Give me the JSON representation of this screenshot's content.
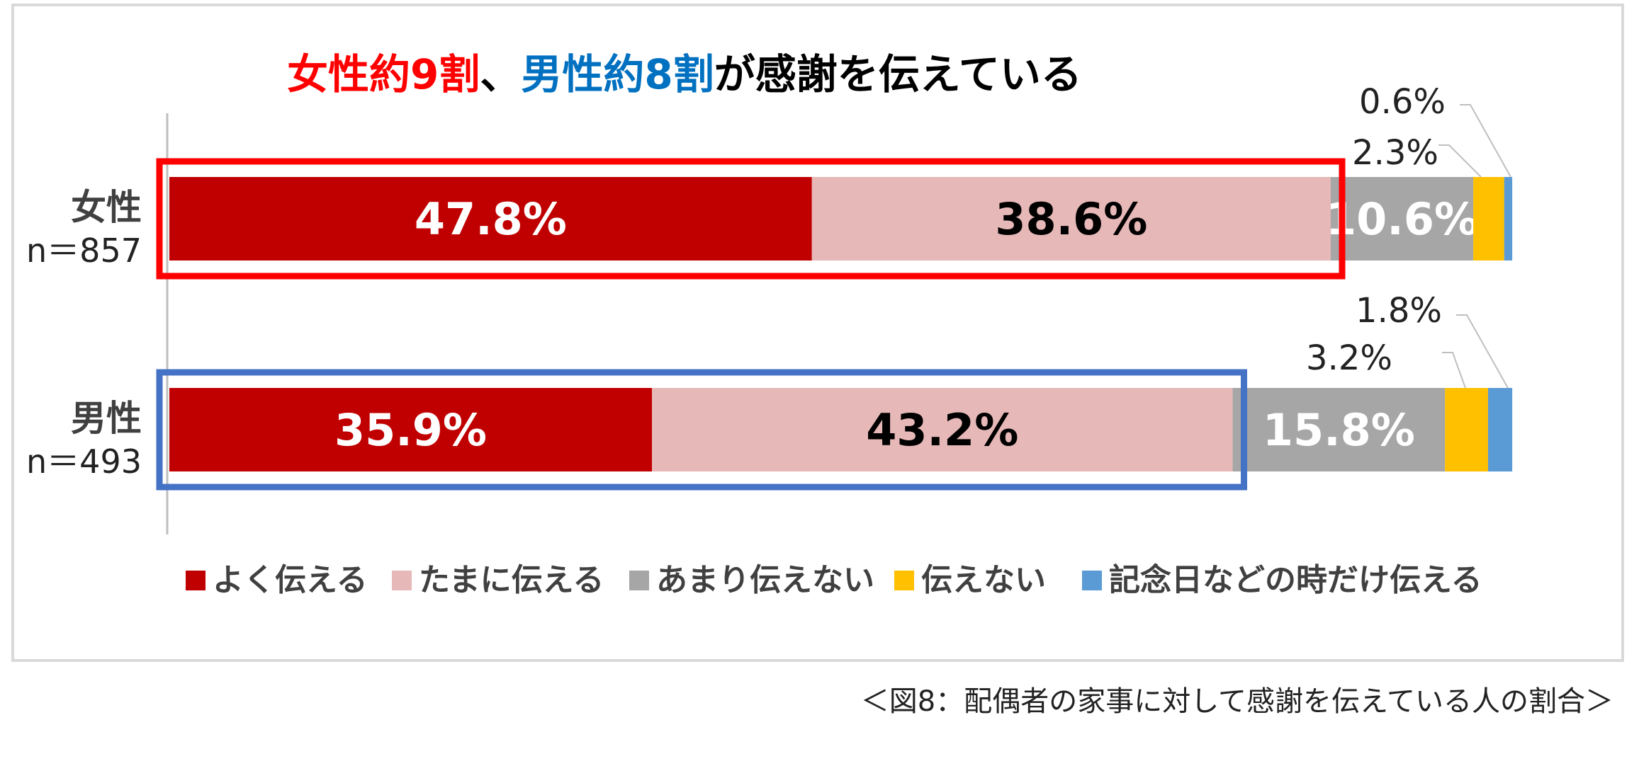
{
  "chart_data": {
    "type": "bar",
    "orientation": "horizontal",
    "stacked": true,
    "title_parts": [
      {
        "text": "女性約9割",
        "color": "#ff0000"
      },
      {
        "text": "、",
        "color": "#000000"
      },
      {
        "text": "男性約8割",
        "color": "#0070c0"
      },
      {
        "text": "が感謝を伝えている",
        "color": "#000000"
      }
    ],
    "categories": [
      {
        "name": "女性",
        "n": "n＝857"
      },
      {
        "name": "男性",
        "n": "n＝493"
      }
    ],
    "series": [
      {
        "name": "よく伝える",
        "color": "#c00000",
        "values": [
          47.8,
          35.9
        ],
        "labels": [
          "47.8%",
          "35.9%"
        ]
      },
      {
        "name": "たまに伝える",
        "color": "#e6b8b7",
        "values": [
          38.6,
          43.2
        ],
        "labels": [
          "38.6%",
          "43.2%"
        ]
      },
      {
        "name": "あまり伝えない",
        "color": "#a6a6a6",
        "values": [
          10.6,
          15.8
        ],
        "labels": [
          "10.6%",
          "15.8%"
        ]
      },
      {
        "name": "伝えない",
        "color": "#ffc000",
        "values": [
          2.3,
          3.2
        ],
        "labels": [
          "2.3%",
          "3.2%"
        ]
      },
      {
        "name": "記念日などの時だけ伝える",
        "color": "#5b9bd5",
        "values": [
          0.6,
          1.8
        ],
        "labels": [
          "0.6%",
          "1.8%"
        ]
      }
    ],
    "highlight_boxes": [
      {
        "category_index": 0,
        "color": "#ff0000",
        "covers_series": 2
      },
      {
        "category_index": 1,
        "color": "#4472c4",
        "covers_series": 2
      }
    ],
    "xlim": [
      0,
      100
    ],
    "legend_position": "bottom"
  },
  "caption": "＜図8：配偶者の家事に対して感謝を伝えている人の割合＞"
}
